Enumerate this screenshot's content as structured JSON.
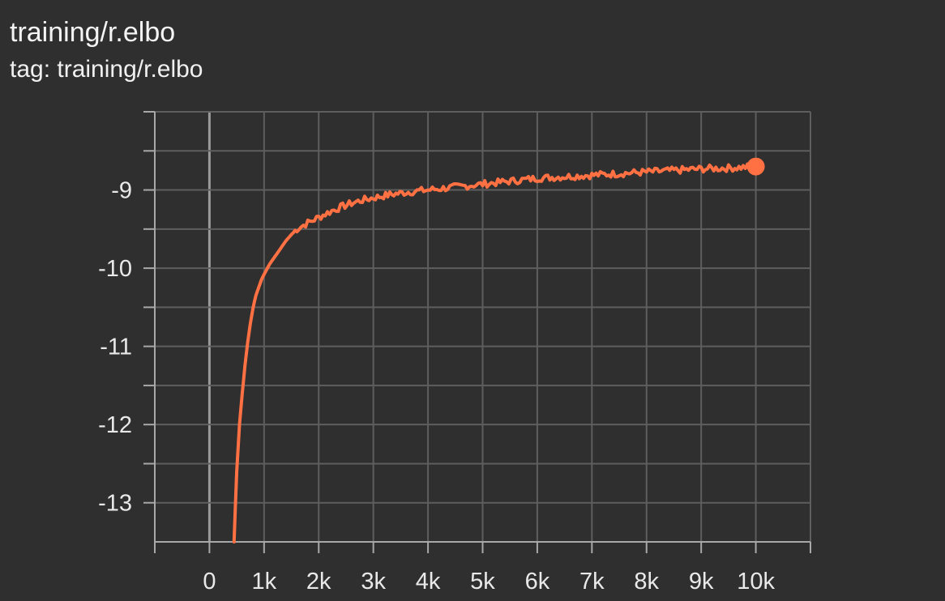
{
  "card": {
    "title": "training/r.elbo",
    "tag_line": "tag: training/r.elbo"
  },
  "colors": {
    "background": "#2f2f2f",
    "grid": "#5e5e5e",
    "axis": "#a8a8a8",
    "zero_line": "#9a9a9a",
    "series": "#ff7043",
    "text": "#e9e9e9"
  },
  "chart_data": {
    "type": "line",
    "title": "training/r.elbo",
    "xlabel": "",
    "ylabel": "",
    "xlim": [
      -1000,
      11000
    ],
    "ylim": [
      -13.5,
      -8.0
    ],
    "x_ticks": [
      0,
      1000,
      2000,
      3000,
      4000,
      5000,
      6000,
      7000,
      8000,
      9000,
      10000
    ],
    "x_tick_labels": [
      "0",
      "1k",
      "2k",
      "3k",
      "4k",
      "5k",
      "6k",
      "7k",
      "8k",
      "9k",
      "10k"
    ],
    "y_ticks": [
      -9,
      -10,
      -11,
      -12,
      -13
    ],
    "y_tick_labels": [
      "-9",
      "-10",
      "-11",
      "-12",
      "-13"
    ],
    "y_minor_step": 0.5,
    "grid": true,
    "legend": "none",
    "series": [
      {
        "color": "#ff7043",
        "x": [
          450,
          500,
          550,
          600,
          650,
          700,
          750,
          800,
          850,
          900,
          950,
          1000,
          1100,
          1200,
          1300,
          1400,
          1500,
          1600,
          1800,
          2000,
          2200,
          2400,
          2600,
          2800,
          3000,
          3300,
          3600,
          4000,
          4400,
          4800,
          5200,
          5600,
          6000,
          6500,
          7000,
          7500,
          8000,
          8500,
          9000,
          9500,
          10000
        ],
        "y": [
          -13.5,
          -12.6,
          -12.0,
          -11.6,
          -11.25,
          -10.95,
          -10.7,
          -10.5,
          -10.35,
          -10.25,
          -10.15,
          -10.08,
          -9.95,
          -9.85,
          -9.75,
          -9.65,
          -9.57,
          -9.5,
          -9.42,
          -9.35,
          -9.28,
          -9.22,
          -9.17,
          -9.13,
          -9.1,
          -9.06,
          -9.03,
          -9.0,
          -8.97,
          -8.94,
          -8.91,
          -8.88,
          -8.85,
          -8.83,
          -8.81,
          -8.79,
          -8.77,
          -8.75,
          -8.73,
          -8.72,
          -8.7
        ]
      }
    ],
    "last_point": {
      "x": 10000,
      "y": -8.7
    }
  }
}
